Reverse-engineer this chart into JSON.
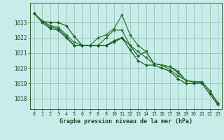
{
  "title": "Graphe pression niveau de la mer (hPa)",
  "background_color": "#c8ecea",
  "grid_color": "#99ccbb",
  "line_colors": [
    "#1a5c20",
    "#2d7a35",
    "#2d7a35",
    "#1a5c20"
  ],
  "x_ticks": [
    0,
    1,
    2,
    3,
    4,
    5,
    6,
    7,
    8,
    9,
    10,
    11,
    12,
    13,
    14,
    15,
    16,
    17,
    18,
    19,
    20,
    21,
    22,
    23
  ],
  "y_ticks": [
    1018,
    1019,
    1020,
    1021,
    1022,
    1023
  ],
  "ylim": [
    1017.3,
    1024.3
  ],
  "xlim": [
    -0.5,
    23.5
  ],
  "series": [
    [
      1023.6,
      1023.1,
      1023.0,
      1023.0,
      1022.8,
      1022.1,
      1021.5,
      1021.5,
      1021.5,
      1021.5,
      1021.7,
      1022.0,
      1021.5,
      1020.8,
      1021.1,
      1020.3,
      1020.2,
      1020.1,
      1019.8,
      1019.2,
      1019.1,
      1019.1,
      1018.5,
      1017.7
    ],
    [
      1023.6,
      1023.1,
      1022.8,
      1022.7,
      1022.2,
      1021.7,
      1021.5,
      1021.5,
      1021.5,
      1022.0,
      1022.5,
      1022.5,
      1021.5,
      1021.1,
      1020.7,
      1020.3,
      1020.2,
      1020.1,
      1019.7,
      1019.2,
      1019.1,
      1019.1,
      1018.5,
      1017.7
    ],
    [
      1023.6,
      1023.1,
      1022.7,
      1022.6,
      1022.1,
      1021.5,
      1021.5,
      1021.5,
      1022.0,
      1022.2,
      1022.6,
      1023.5,
      1022.2,
      1021.5,
      1021.1,
      1020.3,
      1020.2,
      1019.9,
      1019.5,
      1019.2,
      1019.1,
      1019.1,
      1018.5,
      1017.7
    ],
    [
      1023.6,
      1023.0,
      1022.6,
      1022.5,
      1022.0,
      1021.5,
      1021.5,
      1021.5,
      1021.5,
      1021.5,
      1021.8,
      1022.0,
      1021.2,
      1020.5,
      1020.2,
      1020.2,
      1020.0,
      1019.8,
      1019.3,
      1019.0,
      1019.0,
      1019.0,
      1018.3,
      1017.6
    ]
  ]
}
